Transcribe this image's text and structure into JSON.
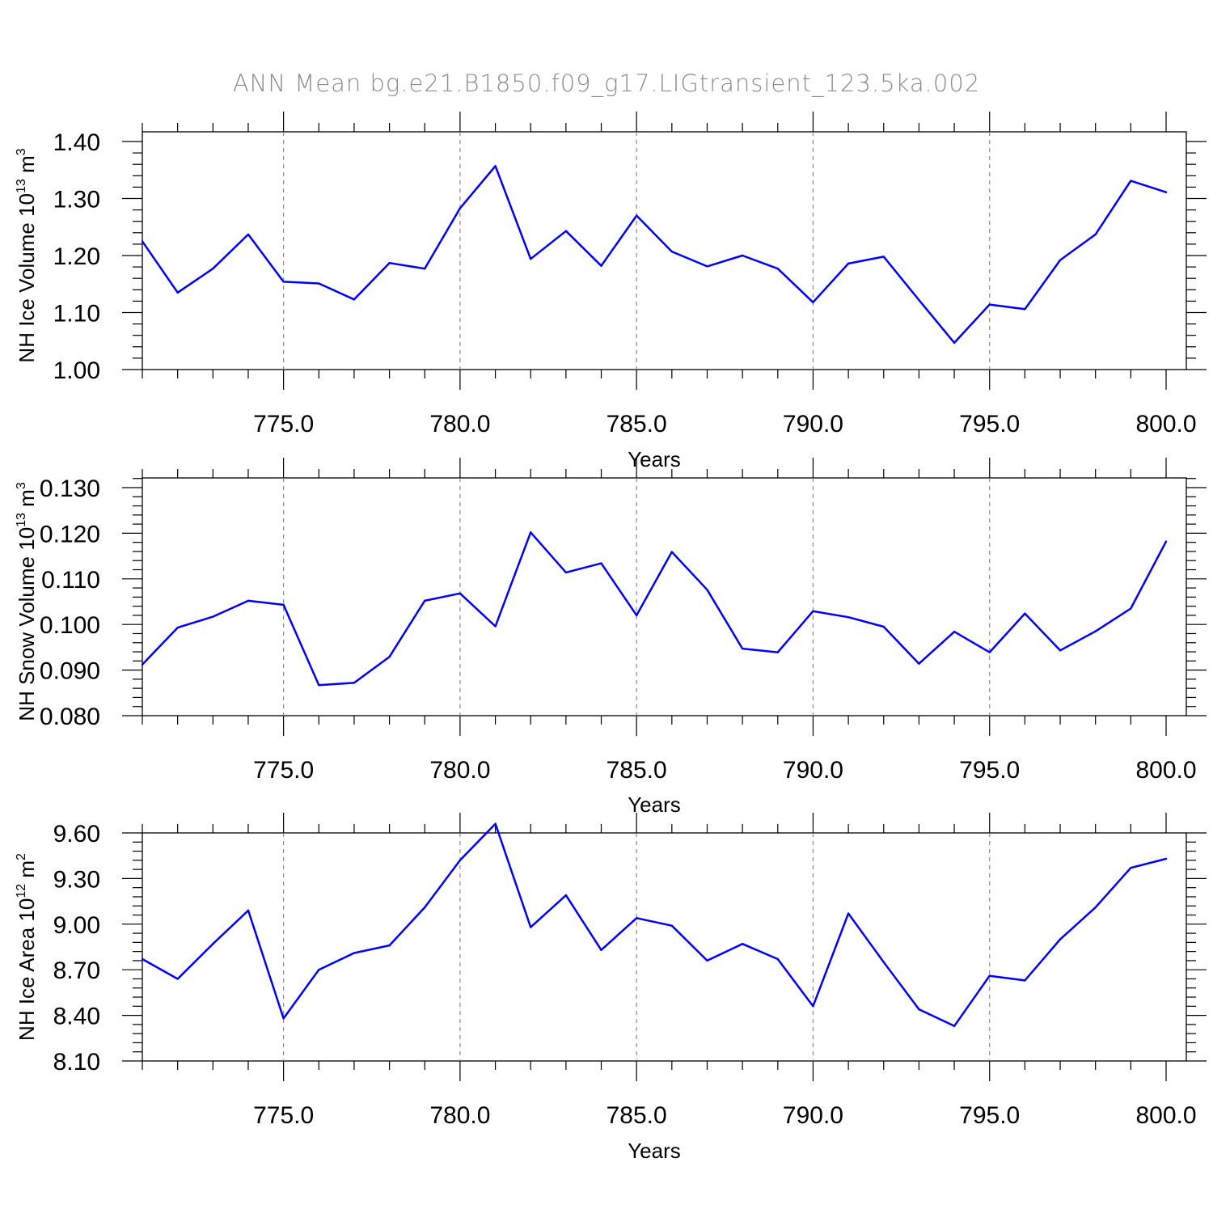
{
  "figure": {
    "title": "ANN Mean  bg.e21.B1850.f09_g17.LIGtransient_123.5ka.002",
    "series_color": "#0000ff",
    "grid_color": "#8a8a8a"
  },
  "chart_data": [
    {
      "type": "line",
      "xlabel": "Years",
      "ylabel": "NH Ice Volume 10",
      "ylabel_exp": "13",
      "ylabel_unit": " m",
      "ylabel_unit_exp": "3",
      "xlim": [
        771,
        800
      ],
      "ylim": [
        1.0,
        1.4
      ],
      "yticks": [
        1.0,
        1.1,
        1.2,
        1.3,
        1.4
      ],
      "ytick_labels": [
        "1.00",
        "1.10",
        "1.20",
        "1.30",
        "1.40"
      ],
      "xticks": [
        775,
        780,
        785,
        790,
        795,
        800
      ],
      "xtick_labels": [
        "775.0",
        "780.0",
        "785.0",
        "790.0",
        "795.0",
        "800.0"
      ],
      "grid": "vertical dashed",
      "x": [
        771,
        772,
        773,
        774,
        775,
        776,
        777,
        778,
        779,
        780,
        781,
        782,
        783,
        784,
        785,
        786,
        787,
        788,
        789,
        790,
        791,
        792,
        793,
        794,
        795,
        796,
        797,
        798,
        799,
        800
      ],
      "values": [
        1.225,
        1.135,
        1.177,
        1.237,
        1.154,
        1.151,
        1.123,
        1.187,
        1.177,
        1.283,
        1.357,
        1.194,
        1.243,
        1.182,
        1.27,
        1.207,
        1.181,
        1.2,
        1.177,
        1.118,
        1.186,
        1.198,
        1.122,
        1.047,
        1.114,
        1.106,
        1.192,
        1.237,
        1.331,
        1.311
      ]
    },
    {
      "type": "line",
      "xlabel": "Years",
      "ylabel": "NH Snow Volume 10",
      "ylabel_exp": "13",
      "ylabel_unit": " m",
      "ylabel_unit_exp": "3",
      "xlim": [
        771,
        800
      ],
      "ylim": [
        0.08,
        0.13
      ],
      "yticks": [
        0.08,
        0.09,
        0.1,
        0.11,
        0.12,
        0.13
      ],
      "ytick_labels": [
        "0.080",
        "0.090",
        "0.100",
        "0.110",
        "0.120",
        "0.130"
      ],
      "xticks": [
        775,
        780,
        785,
        790,
        795,
        800
      ],
      "xtick_labels": [
        "775.0",
        "780.0",
        "785.0",
        "790.0",
        "795.0",
        "800.0"
      ],
      "grid": "vertical dashed",
      "x": [
        771,
        772,
        773,
        774,
        775,
        776,
        777,
        778,
        779,
        780,
        781,
        782,
        783,
        784,
        785,
        786,
        787,
        788,
        789,
        790,
        791,
        792,
        793,
        794,
        795,
        796,
        797,
        798,
        799,
        800
      ],
      "values": [
        0.0912,
        0.0993,
        0.1017,
        0.1052,
        0.1043,
        0.0867,
        0.0872,
        0.0929,
        0.1052,
        0.1068,
        0.0996,
        0.1202,
        0.1114,
        0.1134,
        0.102,
        0.1159,
        0.1076,
        0.0947,
        0.0939,
        0.1029,
        0.1016,
        0.0995,
        0.0914,
        0.0984,
        0.0939,
        0.1024,
        0.0943,
        0.0985,
        0.1035,
        0.1182
      ]
    },
    {
      "type": "line",
      "xlabel": "Years",
      "ylabel": "NH Ice Area 10",
      "ylabel_exp": "12",
      "ylabel_unit": " m",
      "ylabel_unit_exp": "2",
      "xlim": [
        771,
        800
      ],
      "ylim": [
        8.1,
        9.9
      ],
      "yticks": [
        8.1,
        8.4,
        8.7,
        9.0,
        9.3,
        9.6
      ],
      "ytick_labels": [
        "8.10",
        "8.40",
        "8.70",
        "9.00",
        "9.30",
        "9.60"
      ],
      "xticks": [
        775,
        780,
        785,
        790,
        795,
        800
      ],
      "xtick_labels": [
        "775.0",
        "780.0",
        "785.0",
        "790.0",
        "795.0",
        "800.0"
      ],
      "grid": "vertical dashed",
      "x": [
        771,
        772,
        773,
        774,
        775,
        776,
        777,
        778,
        779,
        780,
        781,
        782,
        783,
        784,
        785,
        786,
        787,
        788,
        789,
        790,
        791,
        792,
        793,
        794,
        795,
        796,
        797,
        798,
        799,
        800
      ],
      "values": [
        8.77,
        8.64,
        8.87,
        9.09,
        8.38,
        8.7,
        8.81,
        8.86,
        9.11,
        9.42,
        9.66,
        8.98,
        9.19,
        8.83,
        9.04,
        8.99,
        8.76,
        8.87,
        8.77,
        8.46,
        9.07,
        8.75,
        8.44,
        8.33,
        8.66,
        8.63,
        8.9,
        9.11,
        9.37,
        9.43
      ]
    }
  ]
}
